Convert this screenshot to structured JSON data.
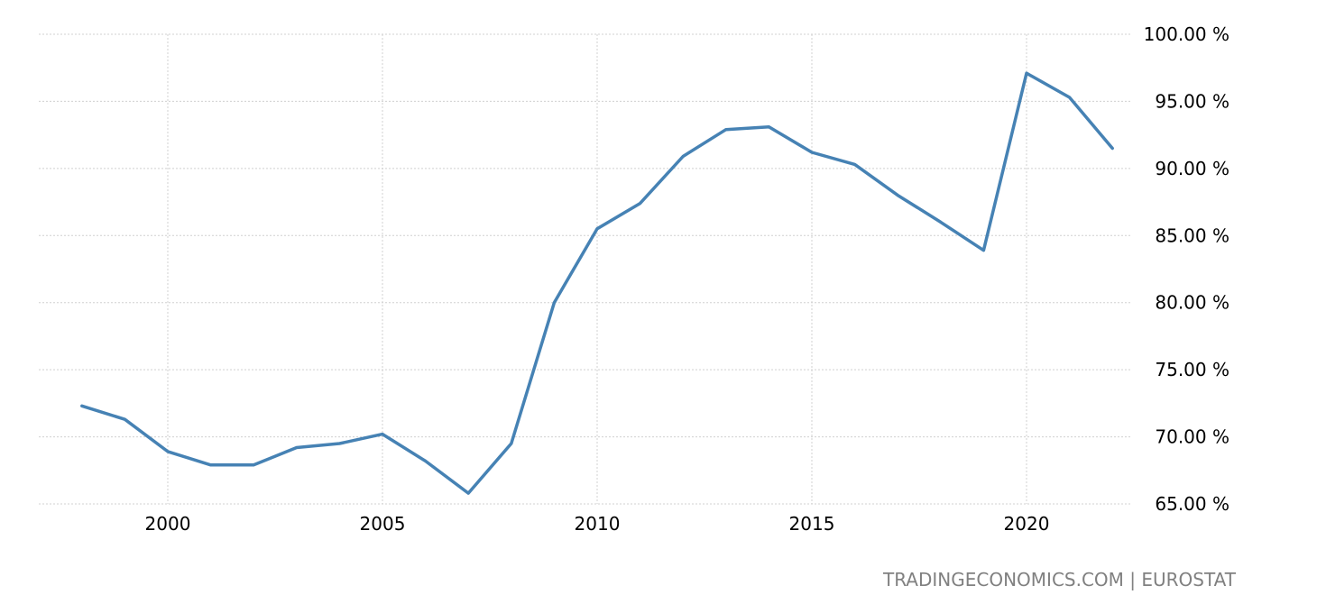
{
  "chart_data": {
    "type": "line",
    "title": "",
    "xlabel": "",
    "ylabel": "",
    "x": [
      1998,
      1999,
      2000,
      2001,
      2002,
      2003,
      2004,
      2005,
      2006,
      2007,
      2008,
      2009,
      2010,
      2011,
      2012,
      2013,
      2014,
      2015,
      2016,
      2017,
      2018,
      2019,
      2020,
      2021,
      2022
    ],
    "series": [
      {
        "values": [
          72.3,
          71.3,
          68.9,
          67.9,
          67.9,
          69.2,
          69.5,
          70.2,
          68.2,
          65.8,
          69.5,
          80.0,
          85.5,
          87.4,
          90.9,
          92.9,
          93.1,
          91.2,
          90.3,
          88.0,
          86.0,
          83.9,
          97.1,
          95.3,
          91.5
        ],
        "color": "#4682b4"
      }
    ],
    "xlim": [
      1995,
      2023
    ],
    "ylim": [
      65,
      100
    ],
    "x_ticks": [
      2000,
      2005,
      2010,
      2015,
      2020
    ],
    "x_tick_labels": [
      "2000",
      "2005",
      "2010",
      "2015",
      "2020"
    ],
    "y_ticks": [
      65,
      70,
      75,
      80,
      85,
      90,
      95,
      100
    ],
    "y_tick_labels": [
      "65.00 %",
      "70.00 %",
      "75.00 %",
      "80.00 %",
      "85.00 %",
      "90.00 %",
      "95.00 %",
      "100.00 %"
    ],
    "grid": true,
    "legend": "none"
  },
  "source": "TRADINGECONOMICS.COM | EUROSTAT"
}
